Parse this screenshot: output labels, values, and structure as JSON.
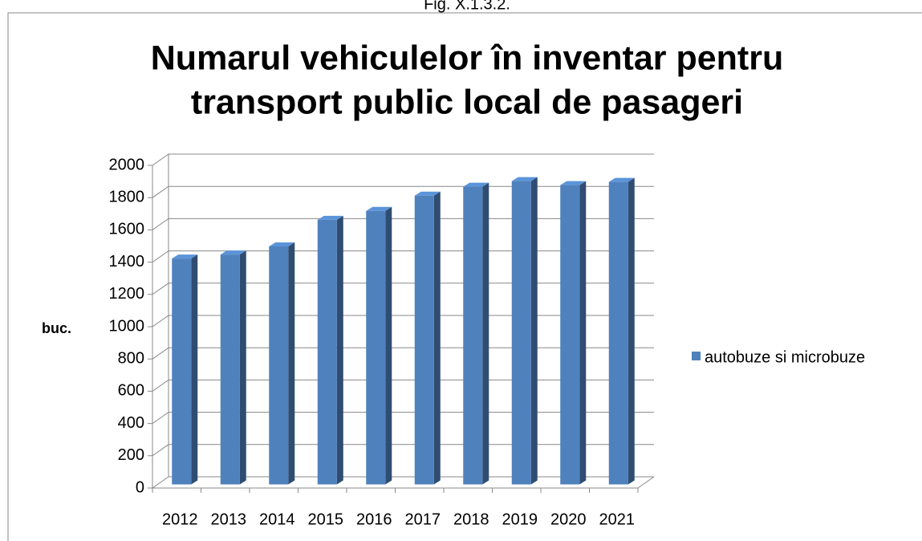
{
  "fig_label": "Fig. X.1.3.2.",
  "chart_data": {
    "type": "bar3d",
    "title": [
      "Numarul vehiculelor în inventar pentru",
      "transport public local de pasageri"
    ],
    "y_label": "buc.",
    "categories": [
      "2012",
      "2013",
      "2014",
      "2015",
      "2016",
      "2017",
      "2018",
      "2019",
      "2020",
      "2021"
    ],
    "series": [
      {
        "name": "autobuze si microbuze",
        "color": "#4f81bd",
        "values": [
          1400,
          1425,
          1475,
          1640,
          1695,
          1790,
          1845,
          1880,
          1855,
          1875
        ]
      }
    ],
    "ylim": [
      0,
      2000
    ],
    "yticks": [
      0,
      200,
      400,
      600,
      800,
      1000,
      1200,
      1400,
      1600,
      1800,
      2000
    ],
    "grid": true,
    "legend": "right"
  }
}
